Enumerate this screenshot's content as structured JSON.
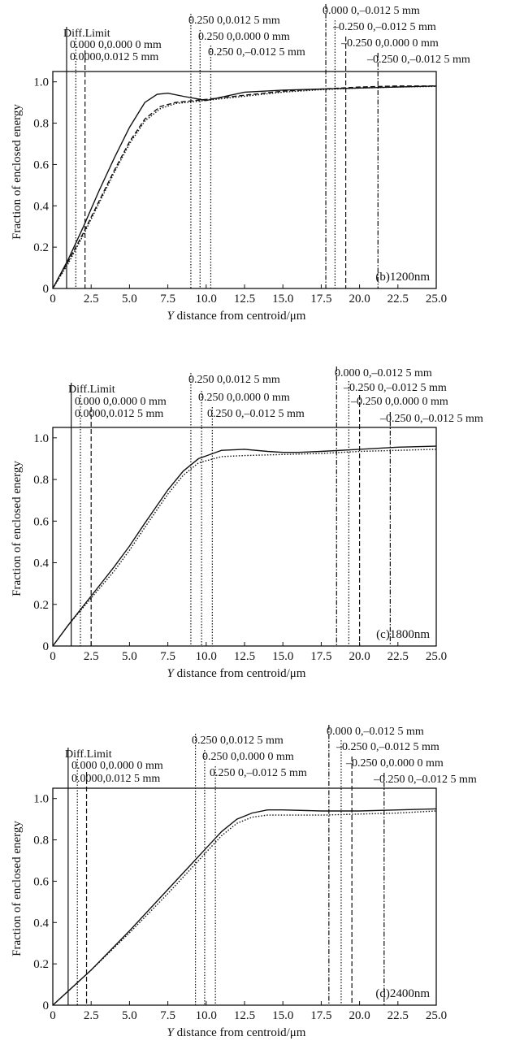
{
  "chart_data": [
    {
      "type": "line",
      "panel_label": "(b)1200nm",
      "xlabel_var": "Y",
      "xlabel_rest": " distance  from  centroid/μm",
      "ylabel": "Fraction of enclosed energy",
      "xlim": [
        0,
        25
      ],
      "ylim": [
        0,
        1.05
      ],
      "x_ticks": [
        "0",
        "2.5",
        "5.0",
        "7.5",
        "10.0",
        "12.5",
        "15.0",
        "17.5",
        "20.0",
        "22.5",
        "25.0"
      ],
      "y_ticks": [
        "0",
        "0.2",
        "0.4",
        "0.6",
        "0.8",
        "1.0"
      ],
      "markers": [
        {
          "label": "Diff.Limit",
          "x": 0.9,
          "style": "solid"
        },
        {
          "label": "0.000 0,0.000 0 mm",
          "x": 1.5,
          "style": "dotted"
        },
        {
          "label": "0.0000,0.012 5 mm",
          "x": 2.1,
          "style": "dashed"
        },
        {
          "label": "0.250 0,0.012 5 mm",
          "x": 9.0,
          "style": "dotted"
        },
        {
          "label": "0.250 0,0.000 0 mm",
          "x": 9.6,
          "style": "dotted"
        },
        {
          "label": "0.250 0,–0.012 5 mm",
          "x": 10.3,
          "style": "dotted"
        },
        {
          "label": "0.000 0,–0.012 5 mm",
          "x": 17.8,
          "style": "dashdot"
        },
        {
          "label": "–0.250 0,–0.012 5 mm",
          "x": 18.4,
          "style": "dotted"
        },
        {
          "label": "–0.250 0,0.000 0 mm",
          "x": 19.1,
          "style": "dashed"
        },
        {
          "label": "–0.250 0,–0.012 5 mm",
          "x": 21.2,
          "style": "dashdot"
        }
      ],
      "series": [
        {
          "style": "solid",
          "x": [
            0,
            1,
            2,
            3,
            4,
            5,
            6,
            6.8,
            7.5,
            8.5,
            10,
            12.5,
            15,
            17.5,
            20,
            22.5,
            25
          ],
          "y": [
            0,
            0.14,
            0.3,
            0.47,
            0.63,
            0.78,
            0.9,
            0.94,
            0.945,
            0.93,
            0.91,
            0.95,
            0.96,
            0.965,
            0.97,
            0.975,
            0.98
          ]
        },
        {
          "style": "dashed",
          "x": [
            0,
            1,
            2,
            3,
            4,
            5,
            6,
            7,
            8,
            10,
            12.5,
            15,
            17.5,
            20,
            22.5,
            25
          ],
          "y": [
            0,
            0.13,
            0.27,
            0.42,
            0.57,
            0.71,
            0.82,
            0.88,
            0.9,
            0.915,
            0.935,
            0.955,
            0.965,
            0.975,
            0.98,
            0.98
          ]
        },
        {
          "style": "dotted",
          "x": [
            0,
            1,
            2,
            3,
            4,
            5,
            6,
            7,
            8,
            10,
            12.5,
            15,
            17.5,
            20,
            22.5,
            25
          ],
          "y": [
            0,
            0.12,
            0.26,
            0.41,
            0.56,
            0.7,
            0.81,
            0.87,
            0.895,
            0.91,
            0.93,
            0.95,
            0.962,
            0.97,
            0.975,
            0.978
          ]
        }
      ]
    },
    {
      "type": "line",
      "panel_label": "(c)1800nm",
      "xlabel_var": "Y",
      "xlabel_rest": " distance  from  centroid/μm",
      "ylabel": "Fraction of enclosed energy",
      "xlim": [
        0,
        25
      ],
      "ylim": [
        0,
        1.05
      ],
      "x_ticks": [
        "0",
        "2.5",
        "5.0",
        "7.5",
        "10.0",
        "12.5",
        "15.0",
        "17.5",
        "20.0",
        "22.5",
        "25.0"
      ],
      "y_ticks": [
        "0",
        "0.2",
        "0.4",
        "0.6",
        "0.8",
        "1.0"
      ],
      "markers": [
        {
          "label": "Diff.Limit",
          "x": 1.2,
          "style": "solid"
        },
        {
          "label": "0.000 0,0.000 0 mm",
          "x": 1.8,
          "style": "dotted"
        },
        {
          "label": "0.0000,0.012 5 mm",
          "x": 2.5,
          "style": "dashed"
        },
        {
          "label": "0.250 0,0.012 5 mm",
          "x": 9.0,
          "style": "dotted"
        },
        {
          "label": "0.250 0,0.000 0 mm",
          "x": 9.7,
          "style": "dotted"
        },
        {
          "label": "0.250 0,–0.012 5 mm",
          "x": 10.4,
          "style": "dotted"
        },
        {
          "label": "0.000 0,–0.012 5 mm",
          "x": 18.5,
          "style": "dashdot"
        },
        {
          "label": "–0.250 0,–0.012 5 mm",
          "x": 19.3,
          "style": "dotted"
        },
        {
          "label": "–0.250 0,0.000 0 mm",
          "x": 20.0,
          "style": "dashed"
        },
        {
          "label": "–0.250 0,–0.012 5 mm",
          "x": 22.0,
          "style": "dashdot"
        }
      ],
      "series": [
        {
          "style": "solid",
          "x": [
            0,
            1,
            2.5,
            4,
            5,
            6,
            7.5,
            8.5,
            9.5,
            11,
            12.5,
            14,
            15,
            16,
            17.5,
            20,
            22.5,
            25
          ],
          "y": [
            0,
            0.1,
            0.24,
            0.38,
            0.48,
            0.59,
            0.75,
            0.84,
            0.9,
            0.94,
            0.945,
            0.935,
            0.93,
            0.93,
            0.935,
            0.945,
            0.955,
            0.96
          ]
        },
        {
          "style": "dotted",
          "x": [
            0,
            1,
            2.5,
            4,
            5,
            6,
            7.5,
            8.5,
            9.5,
            11,
            12.5,
            15,
            17.5,
            20,
            22.5,
            25
          ],
          "y": [
            0,
            0.1,
            0.23,
            0.36,
            0.46,
            0.57,
            0.73,
            0.82,
            0.88,
            0.91,
            0.915,
            0.92,
            0.925,
            0.935,
            0.94,
            0.945
          ]
        }
      ]
    },
    {
      "type": "line",
      "panel_label": "(d)2400nm",
      "xlabel_var": "Y",
      "xlabel_rest": " distance  from  centroid/μm",
      "ylabel": "Fraction of enclosed energy",
      "xlim": [
        0,
        25
      ],
      "ylim": [
        0,
        1.05
      ],
      "x_ticks": [
        "0",
        "2.5",
        "5.0",
        "7.5",
        "10.0",
        "12.5",
        "15.0",
        "17.5",
        "20.0",
        "22.5",
        "25.0"
      ],
      "y_ticks": [
        "0",
        "0.2",
        "0.4",
        "0.6",
        "0.8",
        "1.0"
      ],
      "markers": [
        {
          "label": "Diff.Limit",
          "x": 1.0,
          "style": "solid"
        },
        {
          "label": "0.000 0,0.000 0 mm",
          "x": 1.6,
          "style": "dotted"
        },
        {
          "label": "0.0000,0.012 5 mm",
          "x": 2.2,
          "style": "dashed"
        },
        {
          "label": "0.250 0,0.012 5 mm",
          "x": 9.3,
          "style": "dotted"
        },
        {
          "label": "0.250 0,0.000 0 mm",
          "x": 9.9,
          "style": "dotted"
        },
        {
          "label": "0.250 0,–0.012 5 mm",
          "x": 10.6,
          "style": "dotted"
        },
        {
          "label": "0.000 0,–0.012 5 mm",
          "x": 18.0,
          "style": "dashdot"
        },
        {
          "label": "–0.250 0,–0.012 5 mm",
          "x": 18.8,
          "style": "dotted"
        },
        {
          "label": "–0.250 0,0.000 0 mm",
          "x": 19.5,
          "style": "dashed"
        },
        {
          "label": "–0.250 0,–0.012 5 mm",
          "x": 21.6,
          "style": "dashdot"
        }
      ],
      "series": [
        {
          "style": "solid",
          "x": [
            0,
            2.5,
            5,
            7.5,
            9,
            10,
            11,
            12,
            13,
            14,
            15,
            17.5,
            20,
            22.5,
            25
          ],
          "y": [
            0,
            0.17,
            0.36,
            0.56,
            0.68,
            0.76,
            0.84,
            0.9,
            0.93,
            0.945,
            0.945,
            0.94,
            0.94,
            0.945,
            0.95
          ]
        },
        {
          "style": "dotted",
          "x": [
            0,
            2.5,
            5,
            7.5,
            9,
            10,
            11,
            12,
            13,
            14,
            15,
            17.5,
            20,
            22.5,
            25
          ],
          "y": [
            0,
            0.17,
            0.35,
            0.54,
            0.66,
            0.74,
            0.82,
            0.88,
            0.91,
            0.92,
            0.92,
            0.92,
            0.925,
            0.93,
            0.94
          ]
        }
      ]
    }
  ]
}
